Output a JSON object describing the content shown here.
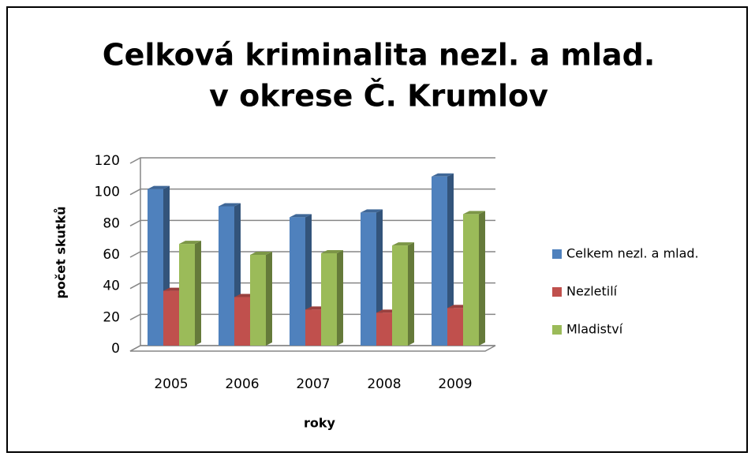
{
  "chart_data": {
    "type": "bar3d",
    "title": [
      "Celková kriminalita nezl. a mlad.",
      "v okrese Č. Krumlov"
    ],
    "x_label": "roky",
    "y_label": "počet skutků",
    "categories": [
      "2005",
      "2006",
      "2007",
      "2008",
      "2009"
    ],
    "series": [
      {
        "name": "Celkem nezl. a mlad.",
        "color": "#4f81bd",
        "values": [
          100,
          89,
          82,
          85,
          108
        ]
      },
      {
        "name": "Nezletilí",
        "color": "#c0504d",
        "values": [
          35,
          31,
          23,
          21,
          24
        ]
      },
      {
        "name": "Mladiství",
        "color": "#9bbb59",
        "values": [
          65,
          58,
          59,
          64,
          84
        ]
      }
    ],
    "ylim": [
      0,
      120
    ],
    "yticks": [
      0,
      20,
      40,
      60,
      80,
      100,
      120
    ],
    "grid": true,
    "legend": "right"
  }
}
